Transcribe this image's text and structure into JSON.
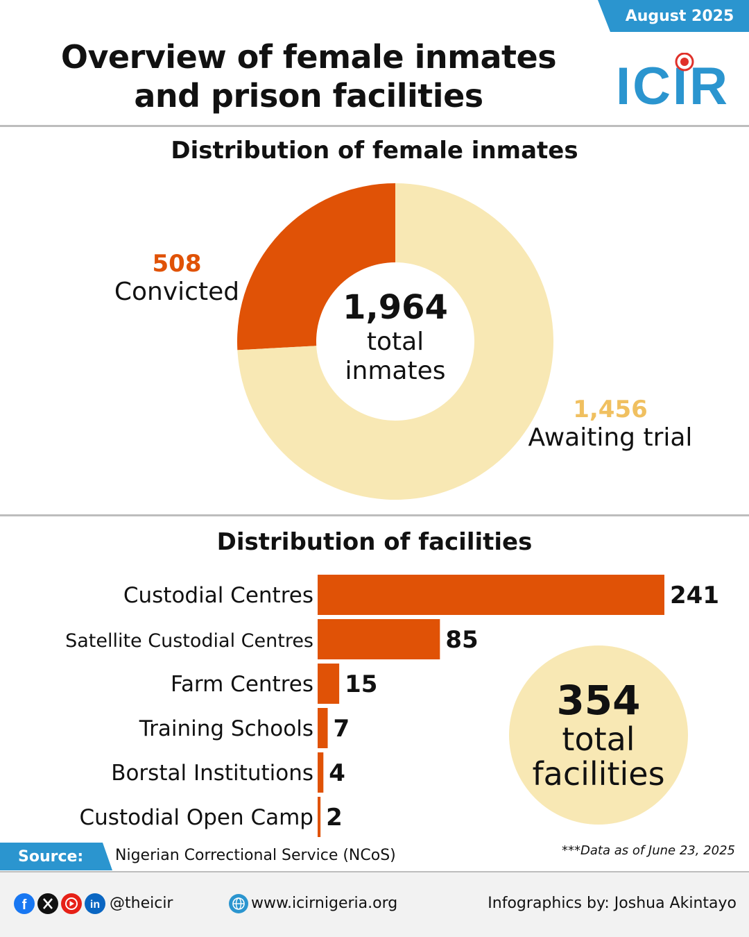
{
  "header": {
    "date": "August 2025",
    "title_line1": "Overview of female inmates",
    "title_line2": "and prison facilities",
    "logo_text": "ICIR"
  },
  "colors": {
    "orange": "#e05206",
    "cream": "#f8e8b4",
    "awaiting_label": "#f0c060",
    "brand_blue": "#2b95cf",
    "logo_red": "#e0312a"
  },
  "inmates": {
    "section_title": "Distribution of female inmates",
    "total_value": "1,964",
    "total_label_1": "total",
    "total_label_2": "inmates",
    "convicted_value": "508",
    "convicted_label": "Convicted",
    "awaiting_value": "1,456",
    "awaiting_label": "Awaiting trial"
  },
  "facilities": {
    "section_title": "Distribution of facilities",
    "total_value": "354",
    "total_label_1": "total",
    "total_label_2": "facilities"
  },
  "chart_data": [
    {
      "type": "pie",
      "title": "Distribution of female inmates",
      "categories": [
        "Convicted",
        "Awaiting trial"
      ],
      "values": [
        508,
        1456
      ],
      "total": 1964,
      "colors": [
        "#e05206",
        "#f8e8b4"
      ]
    },
    {
      "type": "bar",
      "orientation": "horizontal",
      "title": "Distribution of facilities",
      "categories": [
        "Custodial Centres",
        "Satellite Custodial Centres",
        "Farm Centres",
        "Training Schools",
        "Borstal Institutions",
        "Custodial Open Camp"
      ],
      "values": [
        241,
        85,
        15,
        7,
        4,
        2
      ],
      "total": 354,
      "color": "#e05206",
      "grid": false
    }
  ],
  "source": {
    "label": "Source:",
    "text": "Nigerian Correctional Service (NCoS)",
    "note": "***Data as of June 23, 2025"
  },
  "footer": {
    "social_icons": [
      "facebook-icon",
      "x-icon",
      "youtube-icon",
      "linkedin-icon"
    ],
    "handle": "@theicir",
    "website": "www.icirnigeria.org",
    "credit": "Infographics by: Joshua Akintayo"
  }
}
